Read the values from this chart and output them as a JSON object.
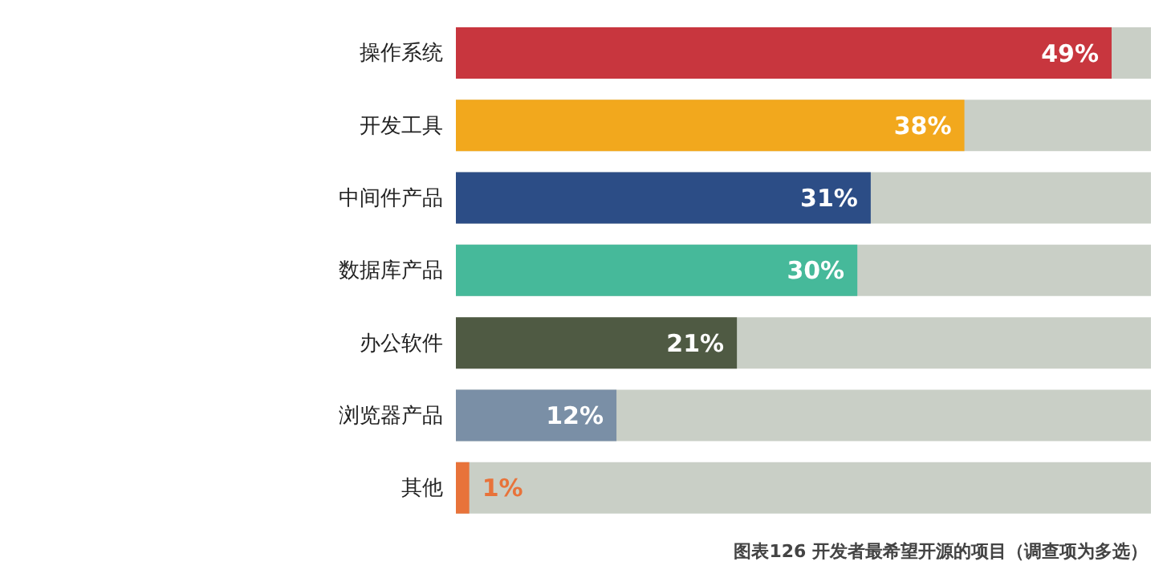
{
  "chart_data": {
    "type": "bar",
    "orientation": "horizontal",
    "categories": [
      "操作系统",
      "开发工具",
      "中间件产品",
      "数据库产品",
      "办公软件",
      "浏览器产品",
      "其他"
    ],
    "values": [
      49,
      38,
      31,
      30,
      21,
      12,
      1
    ],
    "colors": [
      "#c8363e",
      "#f2a81d",
      "#2c4d86",
      "#46b99a",
      "#4f5a43",
      "#7a8fa6",
      "#e8733a"
    ],
    "value_labels": [
      "49%",
      "38%",
      "31%",
      "30%",
      "21%",
      "12%",
      "1%"
    ],
    "tick_labels": "y",
    "annotations": [
      "图表126 开发者最希望开源的项目（调查项为多选）"
    ]
  }
}
